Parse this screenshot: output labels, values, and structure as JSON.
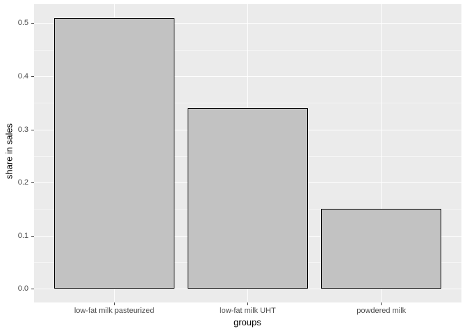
{
  "chart_data": {
    "type": "bar",
    "title": "",
    "xlabel": "groups",
    "ylabel": "share in sales",
    "categories": [
      "low-fat milk pasteurized",
      "low-fat milk UHT",
      "powdered milk"
    ],
    "values": [
      0.51,
      0.34,
      0.15
    ],
    "ylim": [
      -0.0256,
      0.5356
    ],
    "yticks": [
      0.0,
      0.1,
      0.2,
      0.3,
      0.4,
      0.5
    ],
    "ytick_labels": [
      "0.0",
      "0.1",
      "0.2",
      "0.3",
      "0.4",
      "0.5"
    ],
    "yticks_minor": [
      0.05,
      0.15,
      0.25,
      0.35,
      0.45
    ],
    "bar_rel_width": 0.9,
    "grid": "horizontal major+minor, vertical major at category centers",
    "legend": "none",
    "colors": {
      "figure_background": "#FFFFFF",
      "panel_background": "#EBEBEB",
      "bar_fill": "#C2C2C2",
      "bar_stroke": "#000000",
      "grid_major": "#FFFFFF",
      "grid_minor": "#F5F5F5",
      "tick_mark": "#333333",
      "tick_label": "#4D4D4D",
      "axis_title": "#000000"
    }
  }
}
